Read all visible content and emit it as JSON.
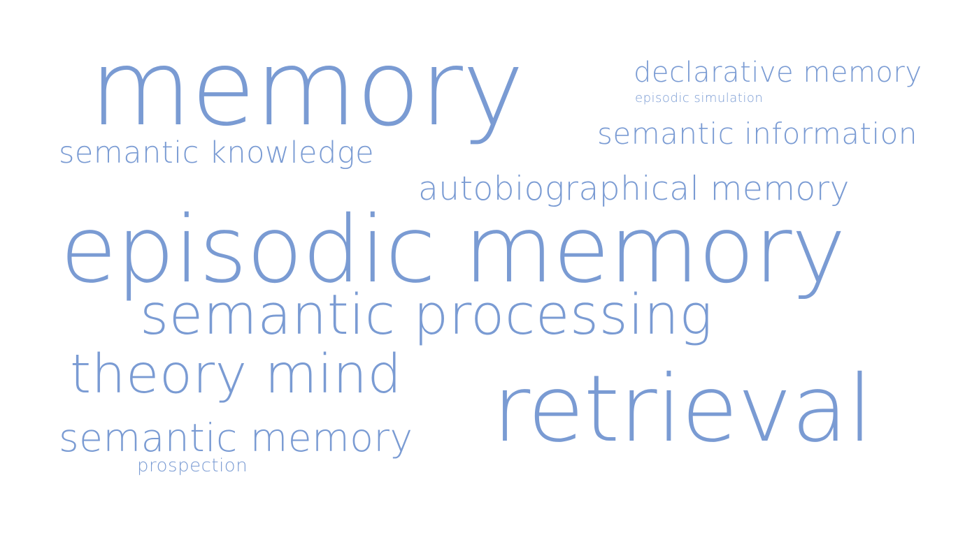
{
  "theme": {
    "word_color": "#7a9bd3",
    "background": "#ffffff"
  },
  "words": {
    "memory": "memory",
    "declarative_memory": "declarative memory",
    "episodic_simulation": "episodic simulation",
    "semantic_information": "semantic information",
    "semantic_knowledge": "semantic knowledge",
    "autobiographical_memory": "autobiographical memory",
    "episodic_memory": "episodic memory",
    "semantic_processing": "semantic processing",
    "theory_mind": "theory mind",
    "retrieval": "retrieval",
    "semantic_memory": "semantic memory",
    "prospection": "prospection"
  }
}
